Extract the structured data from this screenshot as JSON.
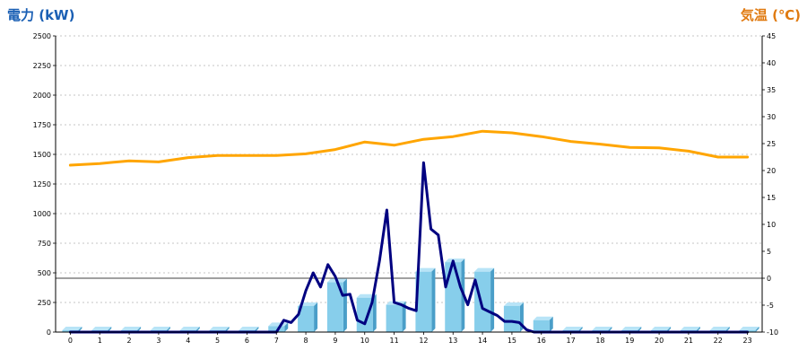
{
  "chart_data": {
    "type": "bar",
    "ylabel": "電力 (kW)",
    "y2label": "気温 (℃)",
    "xlabel": "",
    "title": "",
    "categories": [
      "0",
      "1",
      "2",
      "3",
      "4",
      "5",
      "6",
      "7",
      "8",
      "9",
      "10",
      "11",
      "12",
      "13",
      "14",
      "15",
      "16",
      "17",
      "18",
      "19",
      "20",
      "21",
      "22",
      "23"
    ],
    "ylim": [
      0,
      2500
    ],
    "y2lim": [
      -10,
      45
    ],
    "yticks": [
      0,
      250,
      500,
      750,
      1000,
      1250,
      1500,
      1750,
      2000,
      2250,
      2500
    ],
    "y2ticks": [
      -10,
      -5,
      0,
      5,
      10,
      15,
      20,
      25,
      30,
      35,
      40,
      45
    ],
    "grid": true,
    "series": [
      {
        "kind": "bar",
        "axis": "left",
        "values": [
          0,
          0,
          0,
          0,
          0,
          0,
          0,
          50,
          220,
          420,
          290,
          230,
          510,
          590,
          510,
          220,
          100,
          0,
          0,
          0,
          0,
          0,
          0,
          0
        ],
        "color": "#87ceeb"
      },
      {
        "kind": "line",
        "axis": "left",
        "color": "#000080",
        "x": [
          0,
          0.5,
          1,
          1.5,
          2,
          2.5,
          3,
          3.5,
          4,
          4.5,
          5,
          5.5,
          6,
          6.5,
          7.0,
          7.25,
          7.5,
          7.75,
          8.0,
          8.25,
          8.5,
          8.75,
          9.0,
          9.25,
          9.5,
          9.75,
          10.0,
          10.25,
          10.5,
          10.75,
          11.0,
          11.25,
          11.5,
          11.75,
          12.0,
          12.25,
          12.5,
          12.75,
          13.0,
          13.25,
          13.5,
          13.75,
          14.0,
          14.25,
          14.5,
          14.75,
          15.0,
          15.25,
          15.5,
          15.75,
          16.0,
          16.25,
          16.5,
          17,
          18,
          19,
          20,
          21,
          22,
          23
        ],
        "y": [
          0,
          0,
          0,
          0,
          0,
          0,
          0,
          0,
          0,
          0,
          0,
          0,
          0,
          0,
          0,
          100,
          80,
          150,
          350,
          500,
          380,
          570,
          470,
          310,
          320,
          100,
          70,
          250,
          600,
          1030,
          250,
          230,
          200,
          180,
          1430,
          870,
          820,
          380,
          600,
          380,
          230,
          440,
          200,
          170,
          140,
          90,
          90,
          80,
          20,
          0,
          0,
          0,
          0,
          0,
          0,
          0,
          0,
          0,
          0,
          0
        ]
      },
      {
        "kind": "line",
        "axis": "right",
        "color": "#ffa500",
        "x": [
          0,
          1,
          2,
          3,
          4,
          5,
          6,
          7,
          8,
          9,
          10,
          11,
          12,
          13,
          14,
          15,
          16,
          17,
          18,
          19,
          20,
          21,
          22,
          23
        ],
        "y": [
          21.0,
          21.3,
          21.8,
          21.6,
          22.4,
          22.8,
          22.8,
          22.8,
          23.1,
          23.9,
          25.3,
          24.7,
          25.8,
          26.3,
          27.3,
          27.0,
          26.3,
          25.4,
          24.9,
          24.3,
          24.2,
          23.6,
          22.5,
          22.5
        ]
      }
    ]
  }
}
